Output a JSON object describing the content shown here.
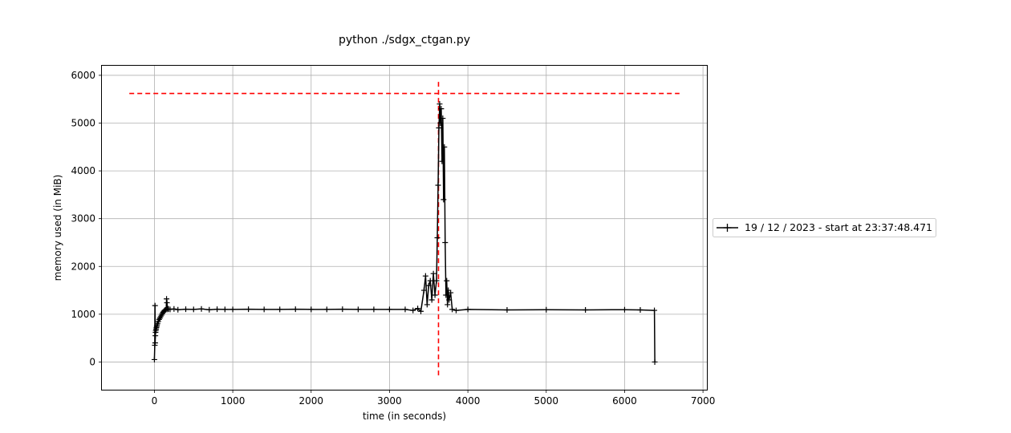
{
  "chart_data": {
    "type": "line",
    "title": "python ./sdgx_ctgan.py",
    "xlabel": "time (in seconds)",
    "ylabel": "memory used (in MiB)",
    "xlim": [
      -670,
      7050
    ],
    "ylim": [
      -580,
      6200
    ],
    "xticks": [
      0,
      1000,
      2000,
      3000,
      4000,
      5000,
      6000,
      7000
    ],
    "yticks": [
      0,
      1000,
      2000,
      3000,
      4000,
      5000,
      6000
    ],
    "grid": true,
    "legend_position": "right",
    "colors": {
      "series": "#000000",
      "peak_lines": "#ff0000"
    },
    "series": [
      {
        "name": "19 / 12 / 2023 - start at 23:37:48.471",
        "marker": "+",
        "x": [
          0,
          5,
          8,
          10,
          12,
          15,
          18,
          22,
          26,
          30,
          35,
          40,
          50,
          60,
          70,
          80,
          90,
          100,
          110,
          120,
          130,
          140,
          150,
          155,
          160,
          170,
          180,
          200,
          250,
          300,
          400,
          500,
          600,
          700,
          800,
          900,
          1000,
          1200,
          1400,
          1600,
          1800,
          2000,
          2200,
          2400,
          2600,
          2800,
          3000,
          3200,
          3300,
          3360,
          3400,
          3440,
          3460,
          3480,
          3500,
          3520,
          3540,
          3560,
          3580,
          3600,
          3610,
          3620,
          3630,
          3640,
          3650,
          3660,
          3670,
          3680,
          3690,
          3700,
          3710,
          3720,
          3730,
          3740,
          3750,
          3760,
          3780,
          3800,
          3850,
          4000,
          4500,
          5000,
          5500,
          6000,
          6200,
          6380,
          6385
        ],
        "y": [
          50,
          350,
          1180,
          400,
          550,
          620,
          660,
          690,
          720,
          750,
          780,
          810,
          850,
          890,
          920,
          950,
          980,
          1010,
          1040,
          1060,
          1080,
          1090,
          1100,
          1320,
          1240,
          1100,
          1110,
          1100,
          1110,
          1095,
          1105,
          1100,
          1110,
          1095,
          1105,
          1100,
          1100,
          1105,
          1100,
          1100,
          1105,
          1100,
          1100,
          1105,
          1100,
          1100,
          1100,
          1100,
          1080,
          1120,
          1060,
          1500,
          1800,
          1200,
          1600,
          1700,
          1300,
          1850,
          1400,
          1700,
          2600,
          3700,
          4900,
          5400,
          5000,
          5300,
          4200,
          5100,
          3400,
          4500,
          2500,
          1400,
          1700,
          1200,
          1500,
          1300,
          1450,
          1100,
          1080,
          1100,
          1090,
          1095,
          1090,
          1095,
          1090,
          1080,
          0
        ]
      }
    ],
    "reference_lines": [
      {
        "orientation": "horizontal",
        "y": 5620,
        "x_from": -320,
        "x_to": 6700
      },
      {
        "orientation": "vertical",
        "x": 3625,
        "y_from": -280,
        "y_to": 5900
      }
    ]
  }
}
